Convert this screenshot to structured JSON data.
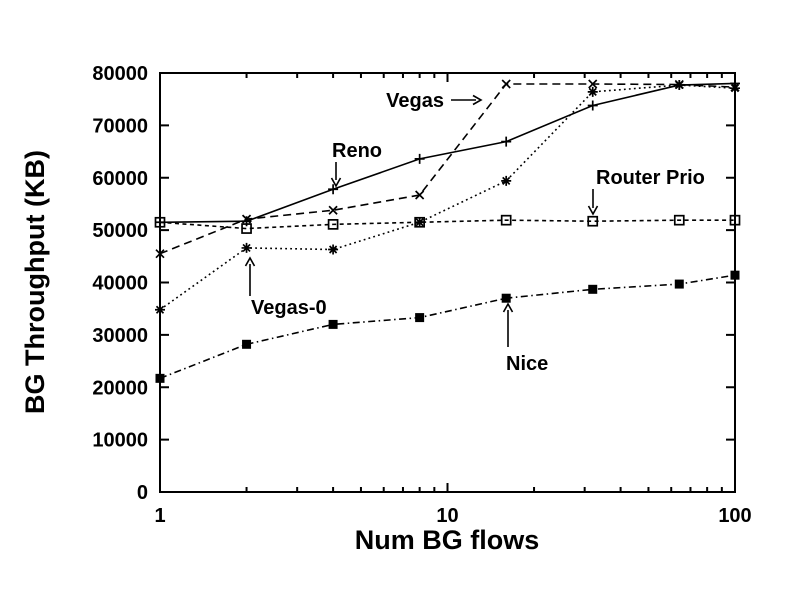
{
  "chart_data": {
    "type": "line",
    "title": "",
    "xlabel": "Num BG flows",
    "ylabel": "BG Throughput (KB)",
    "xscale": "log",
    "xlim": [
      1,
      100
    ],
    "ylim": [
      0,
      80000
    ],
    "x_major_ticks": [
      1,
      10,
      100
    ],
    "x_minor_ticks": [
      2,
      3,
      4,
      5,
      6,
      7,
      8,
      9,
      20,
      30,
      40,
      50,
      60,
      70,
      80,
      90
    ],
    "y_ticks": [
      0,
      10000,
      20000,
      30000,
      40000,
      50000,
      60000,
      70000,
      80000
    ],
    "grid": "off",
    "legend": "none (inline arrow annotations)",
    "x": [
      1,
      2,
      4,
      8,
      16,
      32,
      64,
      100
    ],
    "series": [
      {
        "name": "Reno",
        "marker": "plus",
        "line": "solid",
        "values": [
          51500,
          51700,
          57800,
          63600,
          66900,
          73800,
          77700,
          78000
        ]
      },
      {
        "name": "Vegas",
        "marker": "cross",
        "line": "dash",
        "values": [
          45500,
          52100,
          53800,
          56700,
          77900,
          77900,
          77800,
          77300
        ]
      },
      {
        "name": "Router Prio",
        "marker": "open-square",
        "line": "short-dash",
        "values": [
          51500,
          50300,
          51100,
          51500,
          51900,
          51700,
          51900,
          51900
        ]
      },
      {
        "name": "Vegas-0",
        "marker": "asterisk",
        "line": "dot",
        "values": [
          34800,
          46600,
          46300,
          51500,
          59400,
          76400,
          77700,
          77100
        ]
      },
      {
        "name": "Nice",
        "marker": "filled-square",
        "line": "dash-dot",
        "values": [
          21700,
          28200,
          32000,
          33300,
          37000,
          38700,
          39700,
          41400
        ]
      }
    ],
    "annotations": [
      {
        "text": "Vegas"
      },
      {
        "text": "Reno"
      },
      {
        "text": "Router Prio"
      },
      {
        "text": "Vegas-0"
      },
      {
        "text": "Nice"
      }
    ],
    "colors": {
      "foreground": "#000000",
      "background": "#ffffff"
    }
  }
}
